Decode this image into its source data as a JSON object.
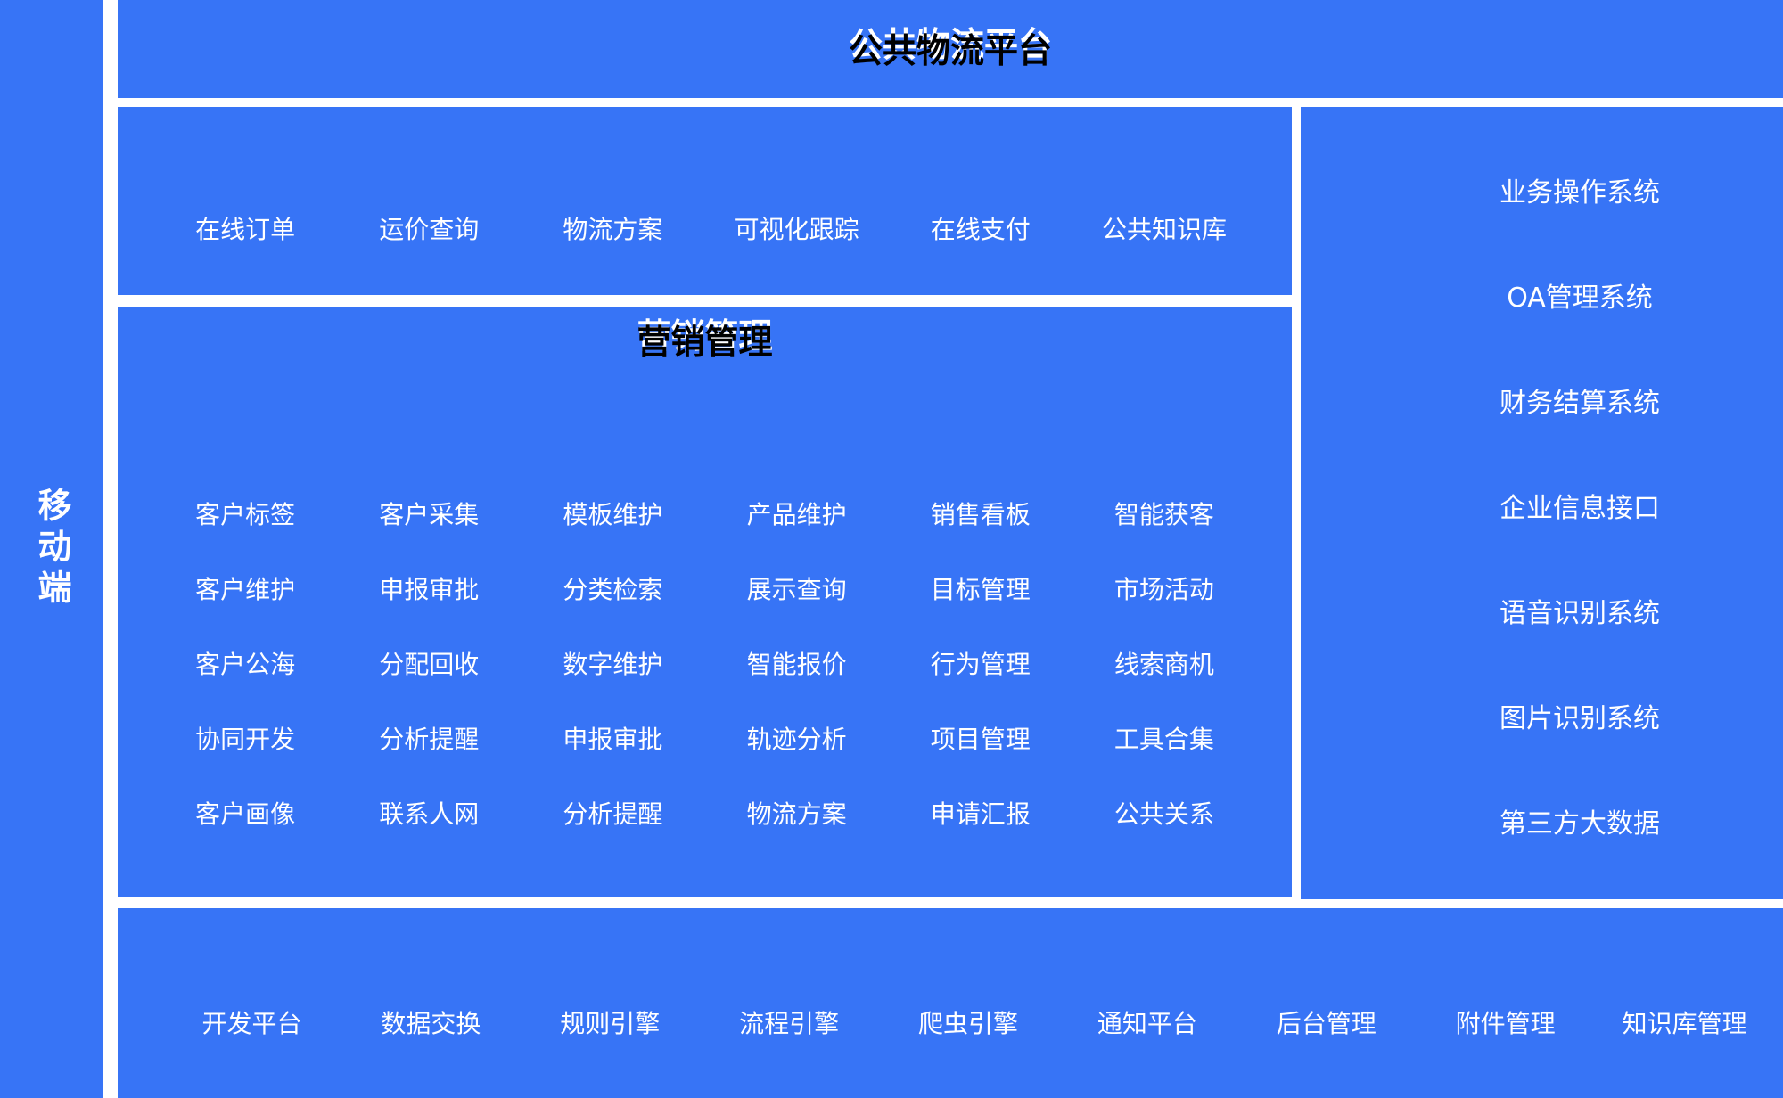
{
  "colors": {
    "panel_blue": "#3774F6",
    "item_text": "#ffffff",
    "title_text": "#000000",
    "background": "#ffffff"
  },
  "sidebar": {
    "label": "移动端"
  },
  "top_banner": {
    "title": "公共物流平台"
  },
  "logistics_row": {
    "items": [
      "在线订单",
      "运价查询",
      "物流方案",
      "可视化跟踪",
      "在线支付",
      "公共知识库"
    ]
  },
  "marketing_panel": {
    "title": "营销管理",
    "grid": [
      [
        "客户标签",
        "客户采集",
        "模板维护",
        "产品维护",
        "销售看板",
        "智能获客"
      ],
      [
        "客户维护",
        "申报审批",
        "分类检索",
        "展示查询",
        "目标管理",
        "市场活动"
      ],
      [
        "客户公海",
        "分配回收",
        "数字维护",
        "智能报价",
        "行为管理",
        "线索商机"
      ],
      [
        "协同开发",
        "分析提醒",
        "申报审批",
        "轨迹分析",
        "项目管理",
        "工具合集"
      ],
      [
        "客户画像",
        "联系人网",
        "分析提醒",
        "物流方案",
        "申请汇报",
        "公共关系"
      ]
    ]
  },
  "systems_panel": {
    "items": [
      "业务操作系统",
      "OA管理系统",
      "财务结算系统",
      "企业信息接口",
      "语音识别系统",
      "图片识别系统",
      "第三方大数据"
    ]
  },
  "platform_row": {
    "items": [
      "开发平台",
      "数据交换",
      "规则引擎",
      "流程引擎",
      "爬虫引擎",
      "通知平台",
      "后台管理",
      "附件管理",
      "知识库管理"
    ]
  }
}
